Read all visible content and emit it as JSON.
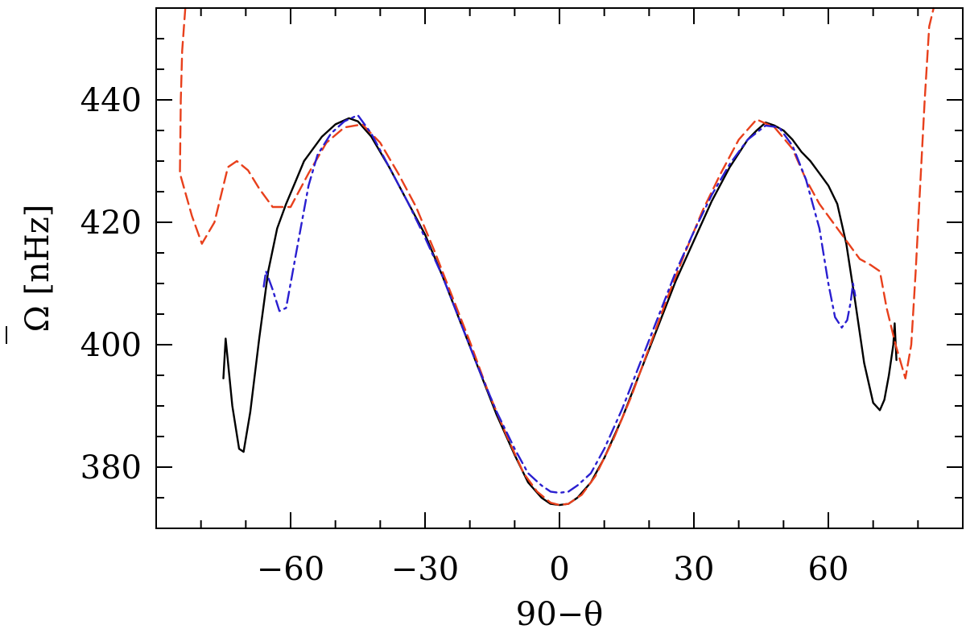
{
  "chart_data": {
    "type": "line",
    "xlabel": "90−θ",
    "ylabel": "Ω [nHz]",
    "ylabel_overbar": true,
    "xlim": [
      -90,
      90
    ],
    "ylim": [
      370,
      455
    ],
    "x_major_ticks": [
      -60,
      -30,
      0,
      30,
      60
    ],
    "x_major_tick_labels": [
      "−60",
      "−30",
      "0",
      "30",
      "60"
    ],
    "x_minor_step": 10,
    "y_major_ticks": [
      380,
      400,
      420,
      440
    ],
    "y_major_tick_labels": [
      "380",
      "400",
      "420",
      "440"
    ],
    "y_minor_step": 5,
    "grid": false,
    "legend": "none",
    "series": [
      {
        "style": "solid",
        "color": "#000000",
        "points": [
          [
            -75,
            394.5
          ],
          [
            -74.5,
            401
          ],
          [
            -73,
            390
          ],
          [
            -71.5,
            383
          ],
          [
            -70.5,
            382.5
          ],
          [
            -69,
            389
          ],
          [
            -67,
            401
          ],
          [
            -65,
            412
          ],
          [
            -63,
            419
          ],
          [
            -61,
            423
          ],
          [
            -59,
            426.5
          ],
          [
            -57,
            430
          ],
          [
            -55,
            432
          ],
          [
            -53,
            434
          ],
          [
            -50,
            436
          ],
          [
            -47,
            437
          ],
          [
            -45,
            436.5
          ],
          [
            -42,
            434
          ],
          [
            -38,
            429
          ],
          [
            -34,
            423.5
          ],
          [
            -30,
            418
          ],
          [
            -26,
            411
          ],
          [
            -22,
            403.5
          ],
          [
            -18,
            396
          ],
          [
            -14,
            388.5
          ],
          [
            -10,
            382
          ],
          [
            -7,
            377.5
          ],
          [
            -4,
            375
          ],
          [
            -2,
            374
          ],
          [
            0,
            373.8
          ],
          [
            2,
            374
          ],
          [
            4,
            375
          ],
          [
            7,
            377.5
          ],
          [
            10,
            381.5
          ],
          [
            14,
            388
          ],
          [
            18,
            395.5
          ],
          [
            22,
            403
          ],
          [
            26,
            410.5
          ],
          [
            30,
            417
          ],
          [
            34,
            423.5
          ],
          [
            38,
            429
          ],
          [
            42,
            433.5
          ],
          [
            44,
            435
          ],
          [
            46,
            436.3
          ],
          [
            48,
            435.8
          ],
          [
            50,
            435
          ],
          [
            52,
            433.5
          ],
          [
            54,
            431.5
          ],
          [
            56,
            430
          ],
          [
            58,
            428
          ],
          [
            60,
            426
          ],
          [
            62,
            423
          ],
          [
            64,
            416.5
          ],
          [
            66,
            407
          ],
          [
            68,
            397
          ],
          [
            70,
            390.5
          ],
          [
            71.5,
            389.3
          ],
          [
            72.5,
            391
          ],
          [
            73.5,
            395
          ],
          [
            74.5,
            400
          ],
          [
            74.8,
            403.5
          ],
          [
            75.2,
            397.5
          ]
        ]
      },
      {
        "style": "dashed",
        "color": "#e8401c",
        "points": [
          [
            -83.5,
            455
          ],
          [
            -84.2,
            448
          ],
          [
            -84.5,
            440
          ],
          [
            -84.7,
            428
          ],
          [
            -82,
            421
          ],
          [
            -79.8,
            416.5
          ],
          [
            -77,
            420
          ],
          [
            -74,
            429
          ],
          [
            -72,
            430
          ],
          [
            -69.5,
            428.5
          ],
          [
            -67,
            425.5
          ],
          [
            -64,
            422.5
          ],
          [
            -60,
            422.5
          ],
          [
            -56,
            428
          ],
          [
            -52,
            433
          ],
          [
            -48,
            435.5
          ],
          [
            -44,
            436
          ],
          [
            -40,
            433
          ],
          [
            -36,
            428
          ],
          [
            -32,
            422.5
          ],
          [
            -28,
            415.5
          ],
          [
            -24,
            408
          ],
          [
            -20,
            400.5
          ],
          [
            -16,
            392.5
          ],
          [
            -12,
            385.5
          ],
          [
            -8,
            379
          ],
          [
            -5,
            376
          ],
          [
            -2,
            374.2
          ],
          [
            0,
            373.8
          ],
          [
            2,
            374
          ],
          [
            5,
            375.5
          ],
          [
            8,
            378.5
          ],
          [
            12,
            384.5
          ],
          [
            16,
            391.5
          ],
          [
            20,
            399.5
          ],
          [
            24,
            407.5
          ],
          [
            28,
            415
          ],
          [
            32,
            422
          ],
          [
            36,
            428
          ],
          [
            40,
            433.5
          ],
          [
            44,
            436.8
          ],
          [
            48,
            435.5
          ],
          [
            52,
            432
          ],
          [
            55,
            427
          ],
          [
            58,
            423
          ],
          [
            61,
            420
          ],
          [
            64,
            417
          ],
          [
            67,
            414
          ],
          [
            69.5,
            413
          ],
          [
            71.5,
            412
          ],
          [
            73,
            406
          ],
          [
            75,
            400
          ],
          [
            77.2,
            394.5
          ],
          [
            78.5,
            400
          ],
          [
            79.5,
            412
          ],
          [
            80.5,
            426
          ],
          [
            81.5,
            440
          ],
          [
            82.5,
            452
          ],
          [
            83.5,
            455
          ]
        ]
      },
      {
        "style": "dashdot",
        "color": "#2a1fd0",
        "points": [
          [
            -66,
            409.5
          ],
          [
            -65.5,
            412
          ],
          [
            -64,
            409
          ],
          [
            -62.5,
            405.5
          ],
          [
            -61,
            406
          ],
          [
            -60,
            410
          ],
          [
            -58,
            418
          ],
          [
            -56,
            426
          ],
          [
            -54,
            431
          ],
          [
            -51,
            434.5
          ],
          [
            -48,
            436.5
          ],
          [
            -45,
            437.5
          ],
          [
            -42,
            434.5
          ],
          [
            -38,
            429
          ],
          [
            -34,
            423.5
          ],
          [
            -30,
            417.5
          ],
          [
            -26,
            411
          ],
          [
            -22,
            403.5
          ],
          [
            -18,
            396
          ],
          [
            -14,
            389
          ],
          [
            -10,
            383
          ],
          [
            -7,
            379
          ],
          [
            -4,
            377
          ],
          [
            -2,
            376
          ],
          [
            0,
            375.8
          ],
          [
            2,
            376
          ],
          [
            4,
            377
          ],
          [
            7,
            379
          ],
          [
            10,
            383
          ],
          [
            14,
            389.5
          ],
          [
            18,
            397
          ],
          [
            22,
            404.5
          ],
          [
            26,
            412
          ],
          [
            30,
            418.5
          ],
          [
            34,
            424.5
          ],
          [
            38,
            429.5
          ],
          [
            42,
            433.5
          ],
          [
            46,
            435.8
          ],
          [
            49,
            435.5
          ],
          [
            52,
            432.5
          ],
          [
            55,
            427
          ],
          [
            58,
            419
          ],
          [
            60,
            410
          ],
          [
            61.5,
            404.5
          ],
          [
            63,
            402.8
          ],
          [
            64.2,
            404
          ],
          [
            65,
            407
          ],
          [
            65.5,
            410
          ],
          [
            66,
            408
          ]
        ]
      }
    ]
  }
}
